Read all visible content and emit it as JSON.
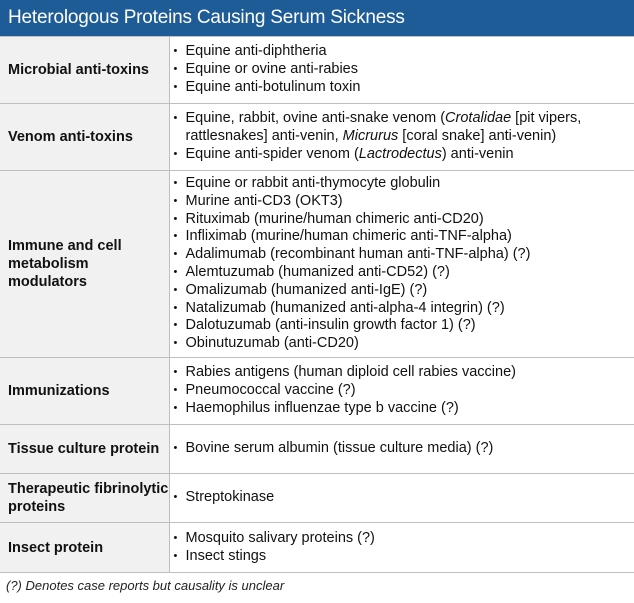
{
  "title": "Heterologous Proteins Causing Serum Sickness",
  "rows": [
    {
      "category": "Microbial anti-toxins",
      "items": [
        "Equine anti-diphtheria",
        "Equine or ovine anti-rabies",
        "Equine anti-botulinum toxin"
      ]
    },
    {
      "category": "Venom anti-toxins",
      "items": [
        {
          "p1": "Equine, rabbit, ovine anti-snake venom (",
          "i1": "Crotalidae",
          "p2": " [pit vipers, rattlesnakes] anti-venin, ",
          "i2": "Micrurus",
          "p3": " [coral snake] anti-venin)"
        },
        {
          "p1": "Equine anti-spider venom (",
          "i1": "Lactrodectus",
          "p2": ") anti-venin"
        }
      ]
    },
    {
      "category": "Immune and cell metabolism modulators",
      "items": [
        "Equine or rabbit anti-thymocyte globulin",
        "Murine anti-CD3 (OKT3)",
        "Rituximab (murine/human chimeric anti-CD20)",
        "Infliximab (murine/human chimeric anti-TNF-alpha)",
        "Adalimumab (recombinant human anti-TNF-alpha) (?)",
        "Alemtuzumab (humanized anti-CD52) (?)",
        "Omalizumab (humanized anti-IgE) (?)",
        "Natalizumab (humanized anti-alpha-4 integrin) (?)",
        "Dalotuzumab (anti-insulin growth factor 1) (?)",
        "Obinutuzumab (anti-CD20)"
      ]
    },
    {
      "category": "Immunizations",
      "items": [
        "Rabies antigens (human diploid cell rabies vaccine)",
        "Pneumococcal vaccine (?)",
        "Haemophilus influenzae type b vaccine (?)"
      ]
    },
    {
      "category": "Tissue culture protein",
      "items": [
        "Bovine serum albumin (tissue culture media) (?)"
      ]
    },
    {
      "category": "Therapeutic fibrinolytic proteins",
      "items": [
        "Streptokinase"
      ]
    },
    {
      "category": "Insect protein",
      "items": [
        "Mosquito salivary proteins (?)",
        "Insect stings"
      ]
    }
  ],
  "footnote": "(?) Denotes case reports but causality is unclear",
  "colors": {
    "header_bg": "#1e5c97",
    "category_bg": "#f1f1f1",
    "rule": "#bfbfbf"
  }
}
